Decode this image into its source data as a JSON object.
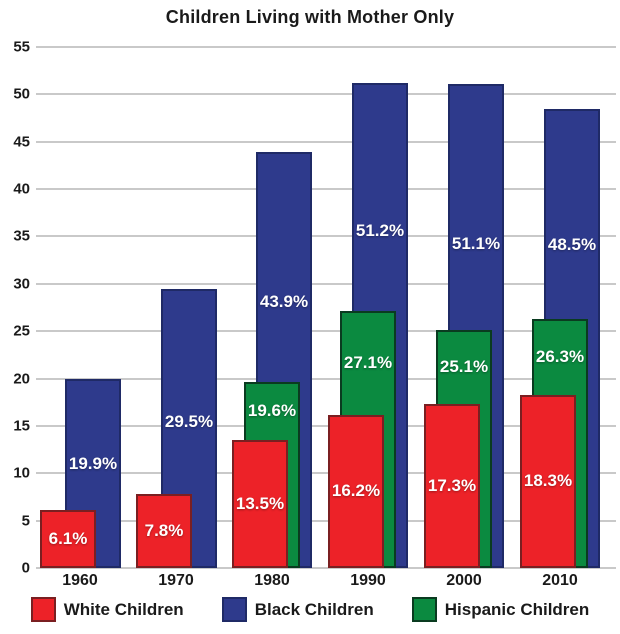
{
  "chart_data": {
    "type": "bar",
    "title": "Children Living with Mother Only",
    "categories": [
      "1960",
      "1970",
      "1980",
      "1990",
      "2000",
      "2010"
    ],
    "series": [
      {
        "name": "White Children",
        "color": "#ED2228",
        "border_color": "#7a1f21",
        "values": [
          6.1,
          7.8,
          13.5,
          16.2,
          17.3,
          18.3
        ]
      },
      {
        "name": "Black Children",
        "color": "#2E3A8C",
        "border_color": "#1f2a66",
        "values": [
          19.9,
          29.5,
          43.9,
          51.2,
          51.1,
          48.5
        ]
      },
      {
        "name": "Hispanic Children",
        "color": "#0B8A40",
        "border_color": "#0a3b20",
        "values": [
          null,
          null,
          19.6,
          27.1,
          25.1,
          26.3
        ]
      }
    ],
    "value_suffix": "%",
    "value_label_color": "#ffffff",
    "xlabel": "",
    "ylabel": "",
    "ylim": [
      0,
      55
    ],
    "yticks": [
      0,
      5,
      10,
      15,
      20,
      25,
      30,
      35,
      40,
      45,
      50,
      55
    ],
    "grid": true,
    "gridline_color": "#c9c9c9",
    "legend_position": "bottom",
    "legend": [
      "White Children",
      "Black Children",
      "Hispanic Children"
    ]
  }
}
